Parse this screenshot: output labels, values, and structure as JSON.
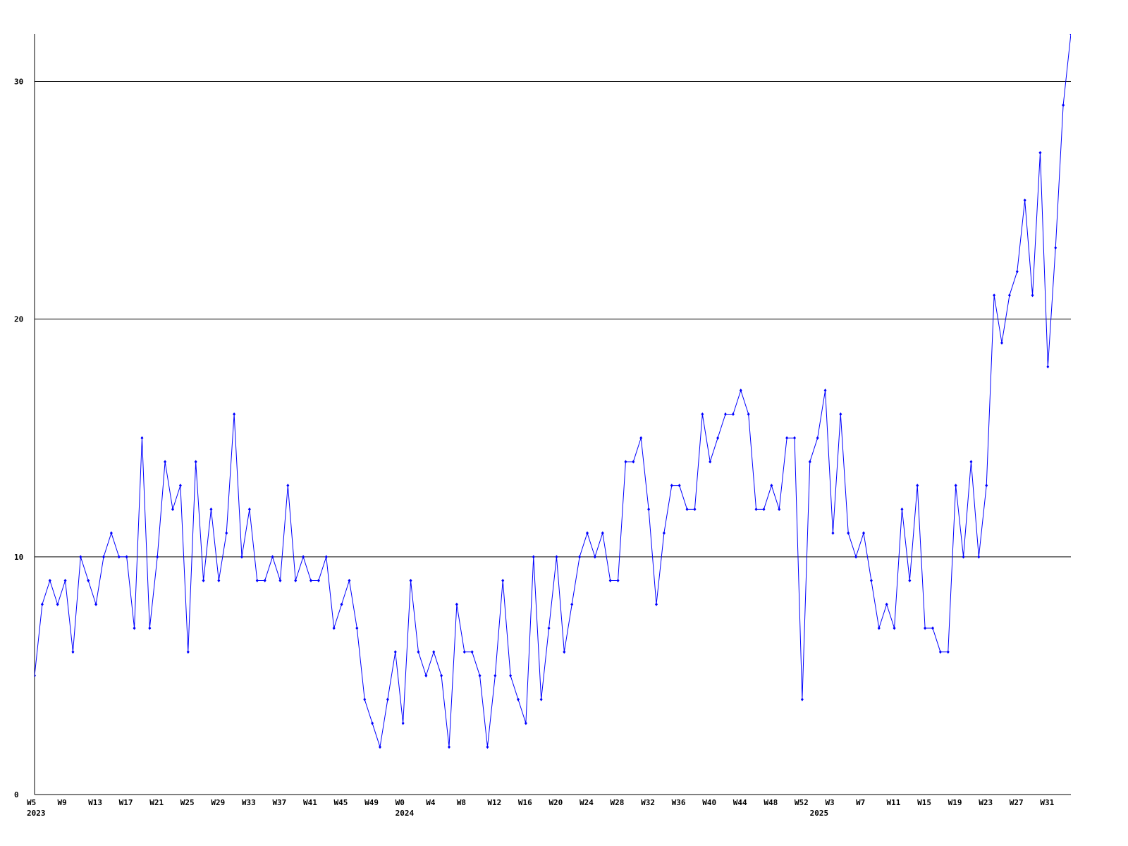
{
  "chart_data": {
    "type": "line",
    "categories": [
      "W5",
      null,
      null,
      null,
      "W9",
      null,
      null,
      null,
      "W13",
      null,
      null,
      null,
      "W17",
      null,
      null,
      null,
      "W21",
      null,
      null,
      null,
      "W25",
      null,
      null,
      null,
      "W29",
      null,
      null,
      null,
      "W33",
      null,
      null,
      null,
      "W37",
      null,
      null,
      null,
      "W41",
      null,
      null,
      null,
      "W45",
      null,
      null,
      null,
      "W49",
      null,
      null,
      null,
      "W0",
      null,
      null,
      null,
      "W4",
      null,
      null,
      null,
      "W8",
      null,
      null,
      null,
      "W12",
      null,
      null,
      null,
      "W16",
      null,
      null,
      null,
      "W20",
      null,
      null,
      null,
      "W24",
      null,
      null,
      null,
      "W28",
      null,
      null,
      null,
      "W32",
      null,
      null,
      null,
      "W36",
      null,
      null,
      null,
      "W40",
      null,
      null,
      null,
      "W44",
      null,
      null,
      null,
      "W48",
      null,
      null,
      null,
      "W52",
      null,
      null,
      null,
      "W3",
      null,
      null,
      null,
      "W7",
      null,
      null,
      null,
      "W11",
      null,
      null,
      null,
      "W15",
      null,
      null,
      null,
      "W19",
      null,
      null,
      null,
      "W23",
      null,
      null,
      null,
      "W27",
      null,
      null,
      null,
      "W31",
      null,
      null,
      null
    ],
    "years": [
      "2023",
      null,
      null,
      null,
      null,
      null,
      null,
      null,
      null,
      null,
      null,
      null,
      null,
      null,
      null,
      null,
      null,
      null,
      null,
      null,
      null,
      null,
      null,
      null,
      null,
      null,
      null,
      null,
      null,
      null,
      null,
      null,
      null,
      null,
      null,
      null,
      null,
      null,
      null,
      null,
      null,
      null,
      null,
      null,
      null,
      null,
      null,
      null,
      "2024",
      null,
      null,
      null,
      null,
      null,
      null,
      null,
      null,
      null,
      null,
      null,
      null,
      null,
      null,
      null,
      null,
      null,
      null,
      null,
      null,
      null,
      null,
      null,
      null,
      null,
      null,
      null,
      null,
      null,
      null,
      null,
      null,
      null,
      null,
      null,
      null,
      null,
      null,
      null,
      null,
      null,
      null,
      null,
      null,
      null,
      null,
      null,
      null,
      null,
      null,
      null,
      null,
      null,
      "2025",
      null,
      null,
      null,
      null,
      null,
      null,
      null,
      null,
      null,
      null,
      null,
      null,
      null,
      null,
      null,
      null,
      null,
      null,
      null,
      null,
      null,
      null,
      null,
      null,
      null,
      null,
      null,
      null,
      null,
      null,
      null,
      null,
      null
    ],
    "series": [
      {
        "color": "#0000ff",
        "values": [
          5,
          8,
          9,
          8,
          9,
          6,
          10,
          9,
          8,
          10,
          11,
          10,
          10,
          7,
          15,
          7,
          10,
          14,
          12,
          13,
          6,
          14,
          9,
          12,
          9,
          11,
          16,
          10,
          12,
          9,
          9,
          10,
          9,
          13,
          9,
          10,
          9,
          9,
          10,
          7,
          8,
          9,
          7,
          4,
          3,
          2,
          4,
          6,
          3,
          9,
          6,
          5,
          6,
          5,
          2,
          8,
          6,
          6,
          5,
          2,
          5,
          9,
          5,
          4,
          3,
          10,
          4,
          7,
          10,
          6,
          8,
          10,
          11,
          10,
          11,
          9,
          9,
          14,
          14,
          15,
          12,
          8,
          11,
          13,
          13,
          12,
          12,
          16,
          14,
          15,
          16,
          16,
          17,
          16,
          12,
          12,
          13,
          12,
          15,
          15,
          4,
          14,
          15,
          17,
          11,
          16,
          11,
          10,
          11,
          9,
          7,
          8,
          7,
          12,
          9,
          13,
          7,
          7,
          6,
          6,
          13,
          10,
          14,
          10,
          13,
          21,
          19,
          21,
          22,
          25,
          21,
          27,
          18,
          23,
          29,
          32
        ]
      }
    ],
    "ylim": [
      0,
      32
    ],
    "yticks": [
      0,
      10,
      20,
      30
    ],
    "grid": true
  }
}
